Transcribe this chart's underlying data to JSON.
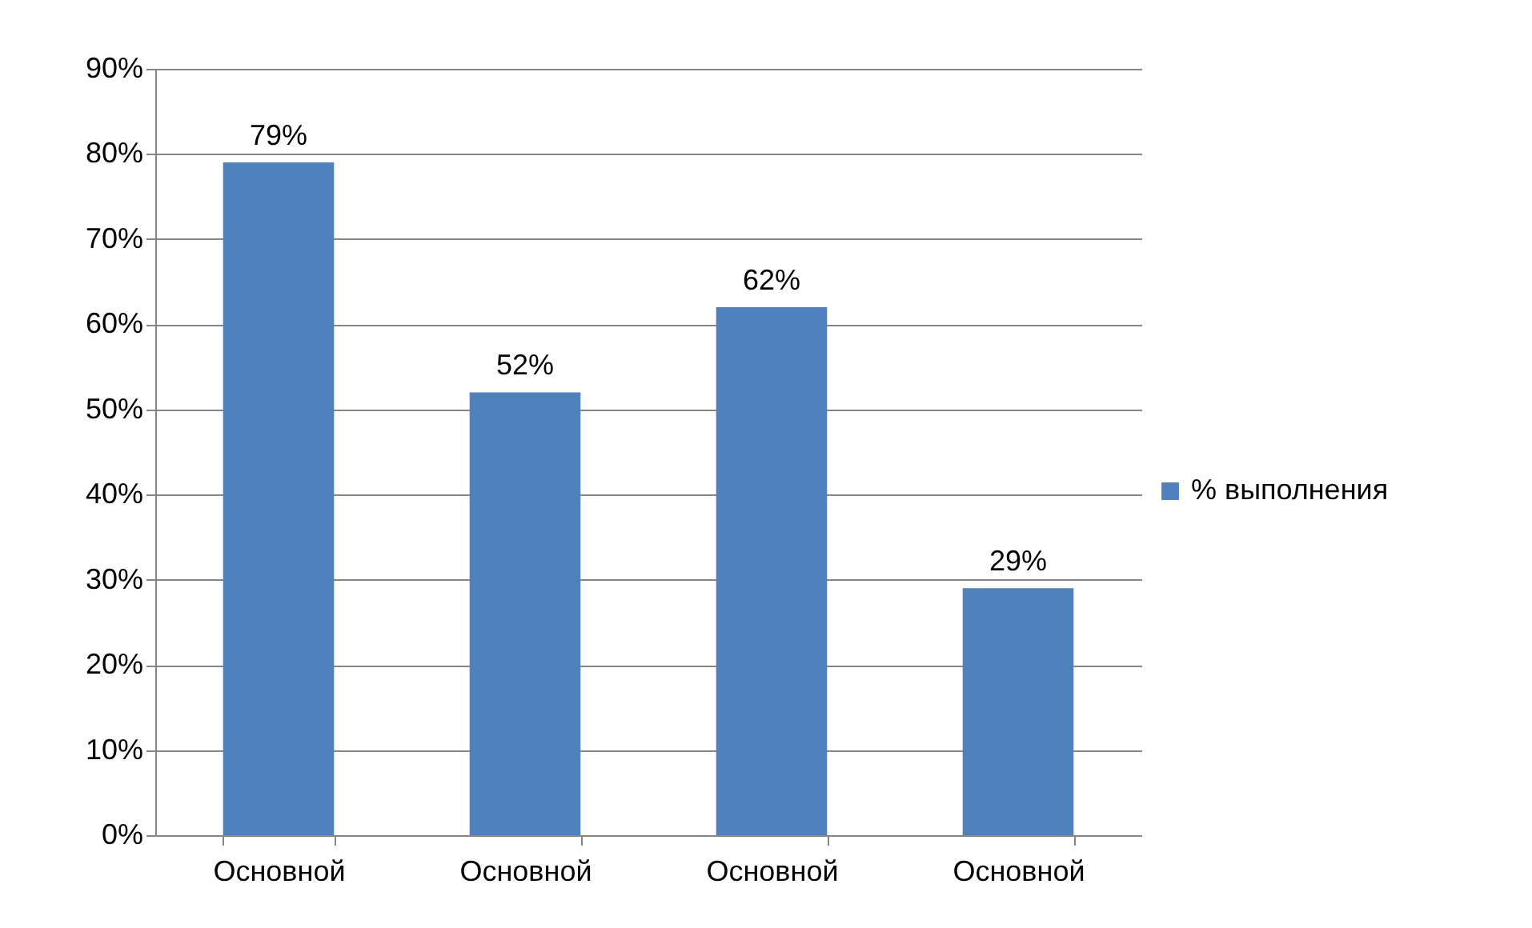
{
  "chart_data": {
    "type": "bar",
    "categories": [
      "Основной",
      "Основной",
      "Основной",
      "Основной"
    ],
    "series": [
      {
        "name": "% выполнения",
        "color": "#4f81bd",
        "values": [
          79,
          52,
          62,
          29
        ],
        "value_labels": [
          "79%",
          "52%",
          "62%",
          "29%"
        ]
      }
    ],
    "ylim": [
      0,
      90
    ],
    "yticks": [
      {
        "value": 0,
        "label": "0%"
      },
      {
        "value": 10,
        "label": "10%"
      },
      {
        "value": 20,
        "label": "20%"
      },
      {
        "value": 30,
        "label": "30%"
      },
      {
        "value": 40,
        "label": "40%"
      },
      {
        "value": 50,
        "label": "50%"
      },
      {
        "value": 60,
        "label": "60%"
      },
      {
        "value": 70,
        "label": "70%"
      },
      {
        "value": 80,
        "label": "80%"
      },
      {
        "value": 90,
        "label": "90%"
      }
    ],
    "grid": true,
    "legend": "right"
  }
}
